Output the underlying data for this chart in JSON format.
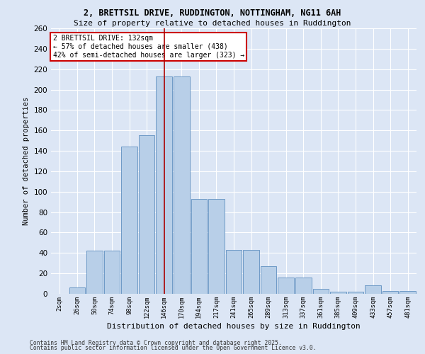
{
  "title_line1": "2, BRETTSIL DRIVE, RUDDINGTON, NOTTINGHAM, NG11 6AH",
  "title_line2": "Size of property relative to detached houses in Ruddington",
  "xlabel": "Distribution of detached houses by size in Ruddington",
  "ylabel": "Number of detached properties",
  "categories": [
    "2sqm",
    "26sqm",
    "50sqm",
    "74sqm",
    "98sqm",
    "122sqm",
    "146sqm",
    "170sqm",
    "194sqm",
    "217sqm",
    "241sqm",
    "265sqm",
    "289sqm",
    "313sqm",
    "337sqm",
    "361sqm",
    "385sqm",
    "409sqm",
    "433sqm",
    "457sqm",
    "481sqm"
  ],
  "values": [
    0,
    6,
    42,
    42,
    144,
    155,
    213,
    213,
    93,
    93,
    43,
    43,
    27,
    16,
    16,
    5,
    2,
    2,
    8,
    3,
    3
  ],
  "bar_color": "#b8cfe8",
  "bar_edge_color": "#5f8fc0",
  "highlight_bar_index": 6,
  "highlight_line_color": "#aa0000",
  "annotation_text": "2 BRETTSIL DRIVE: 132sqm\n← 57% of detached houses are smaller (438)\n42% of semi-detached houses are larger (323) →",
  "annotation_box_facecolor": "#ffffff",
  "annotation_box_edgecolor": "#cc0000",
  "background_color": "#dce6f5",
  "plot_bg_color": "#dce6f5",
  "grid_color": "#ffffff",
  "ylim": [
    0,
    260
  ],
  "yticks": [
    0,
    20,
    40,
    60,
    80,
    100,
    120,
    140,
    160,
    180,
    200,
    220,
    240,
    260
  ],
  "footer_line1": "Contains HM Land Registry data © Crown copyright and database right 2025.",
  "footer_line2": "Contains public sector information licensed under the Open Government Licence v3.0."
}
